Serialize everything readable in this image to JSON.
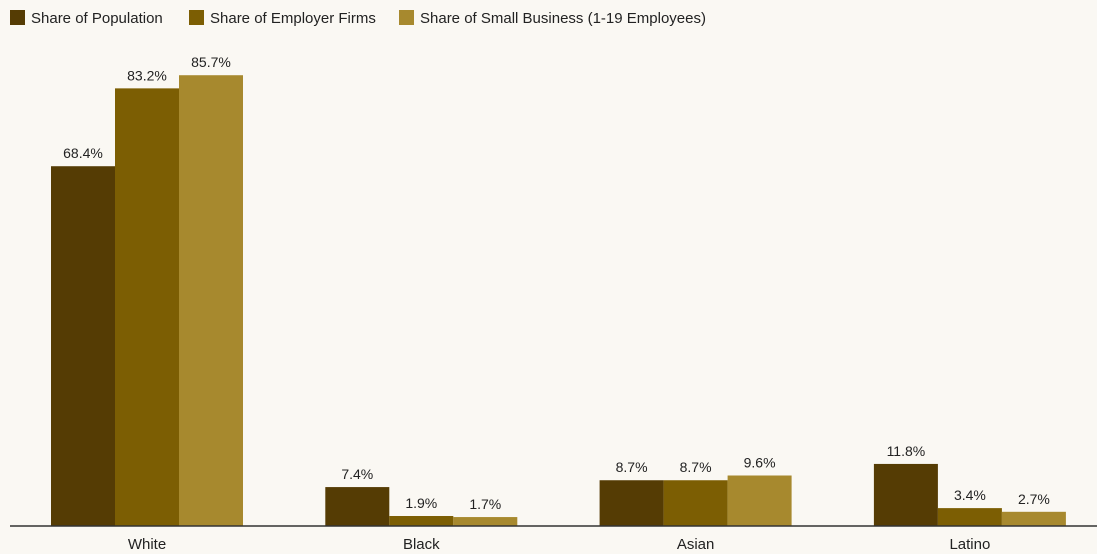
{
  "chart_data": {
    "type": "bar",
    "categories": [
      "White",
      "Black",
      "Asian",
      "Latino"
    ],
    "series": [
      {
        "name": "Share of Population",
        "color": "#553c04",
        "values": [
          68.4,
          7.4,
          8.7,
          11.8
        ]
      },
      {
        "name": "Share of Employer Firms",
        "color": "#7c5e03",
        "values": [
          83.2,
          1.9,
          8.7,
          3.4
        ]
      },
      {
        "name": "Share of Small Business (1-19 Employees)",
        "color": "#a7892e",
        "values": [
          85.7,
          1.7,
          9.6,
          2.7
        ]
      }
    ],
    "data_labels": [
      [
        "68.4%",
        "7.4%",
        "8.7%",
        "11.8%"
      ],
      [
        "83.2%",
        "1.9%",
        "8.7%",
        "3.4%"
      ],
      [
        "85.7%",
        "1.7%",
        "9.6%",
        "2.7%"
      ]
    ],
    "ylim": [
      0,
      100
    ],
    "grid": false,
    "legend_position": "top-left",
    "colors": {
      "axis": "#333333",
      "background": "#faf8f3"
    }
  }
}
